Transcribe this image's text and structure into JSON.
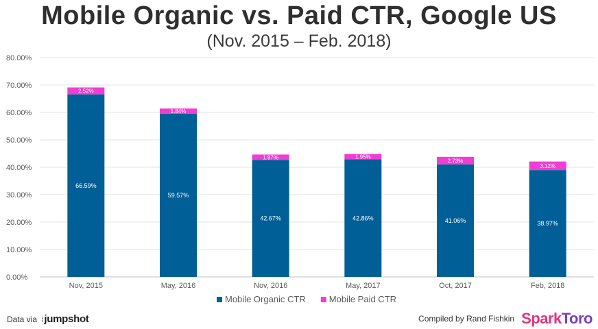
{
  "header": {
    "title": "Mobile Organic vs. Paid CTR, Google US",
    "subtitle": "(Nov. 2015 – Feb. 2018)"
  },
  "chart_data": {
    "type": "bar",
    "stacked": true,
    "categories": [
      "Nov, 2015",
      "May, 2016",
      "Nov, 2016",
      "May, 2017",
      "Oct, 2017",
      "Feb, 2018"
    ],
    "series": [
      {
        "name": "Mobile Organic CTR",
        "color": "#005f96",
        "values": [
          66.59,
          59.57,
          42.67,
          42.86,
          41.06,
          38.97
        ],
        "labels": [
          "66.59%",
          "59.57%",
          "42.67%",
          "42.86%",
          "41.06%",
          "38.97%"
        ]
      },
      {
        "name": "Mobile Paid CTR",
        "color": "#f03ed2",
        "values": [
          2.52,
          1.84,
          1.97,
          1.95,
          2.73,
          3.12
        ],
        "labels": [
          "2.52%",
          "1.84%",
          "1.97%",
          "1.95%",
          "2.73%",
          "3.12%"
        ]
      }
    ],
    "y_ticks": [
      "0.00%",
      "10.00%",
      "20.00%",
      "30.00%",
      "40.00%",
      "50.00%",
      "60.00%",
      "70.00%",
      "80.00%"
    ],
    "ylim": [
      0,
      80
    ],
    "grid": true,
    "legend": "bottom-center"
  },
  "footer": {
    "data_via": "Data via",
    "data_source": "jumpshot",
    "compiled_by": "Compiled by Rand Fishkin",
    "brand_part1": "Spark",
    "brand_part2": "Toro"
  }
}
